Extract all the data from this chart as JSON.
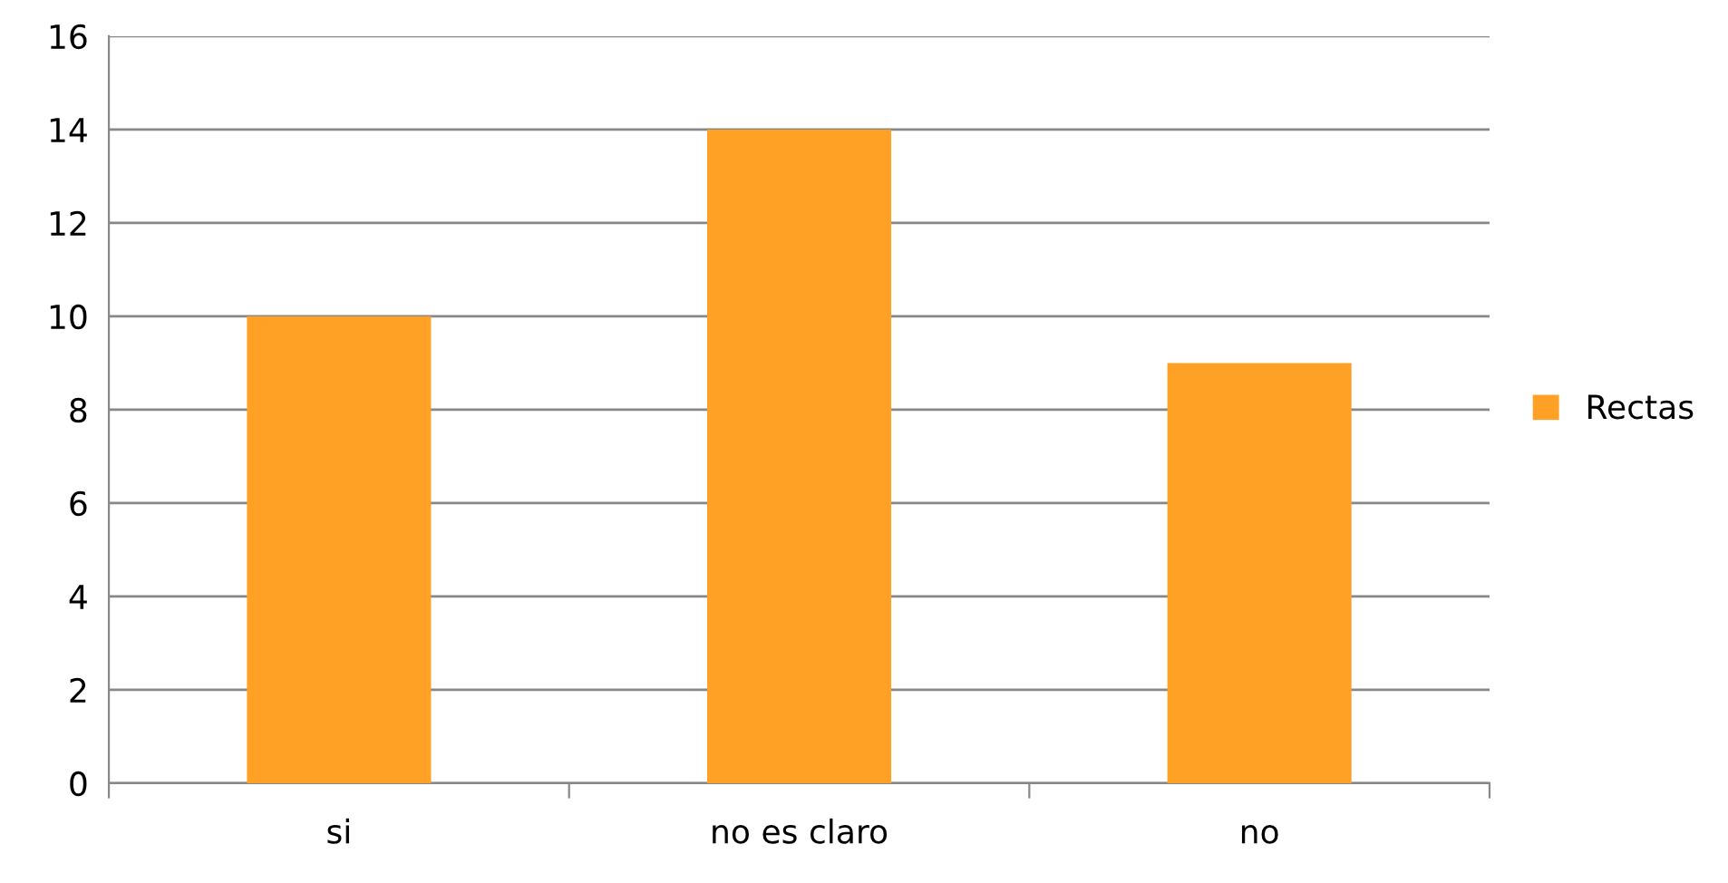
{
  "chart_data": {
    "type": "bar",
    "categories": [
      "si",
      "no es claro",
      "no"
    ],
    "series": [
      {
        "name": "Rectas",
        "color": "#ffa124",
        "values": [
          10,
          14,
          9
        ]
      }
    ],
    "ylim": [
      0,
      16
    ],
    "yticks": [
      0,
      2,
      4,
      6,
      8,
      10,
      12,
      14,
      16
    ],
    "grid": "y",
    "legend": "right"
  }
}
